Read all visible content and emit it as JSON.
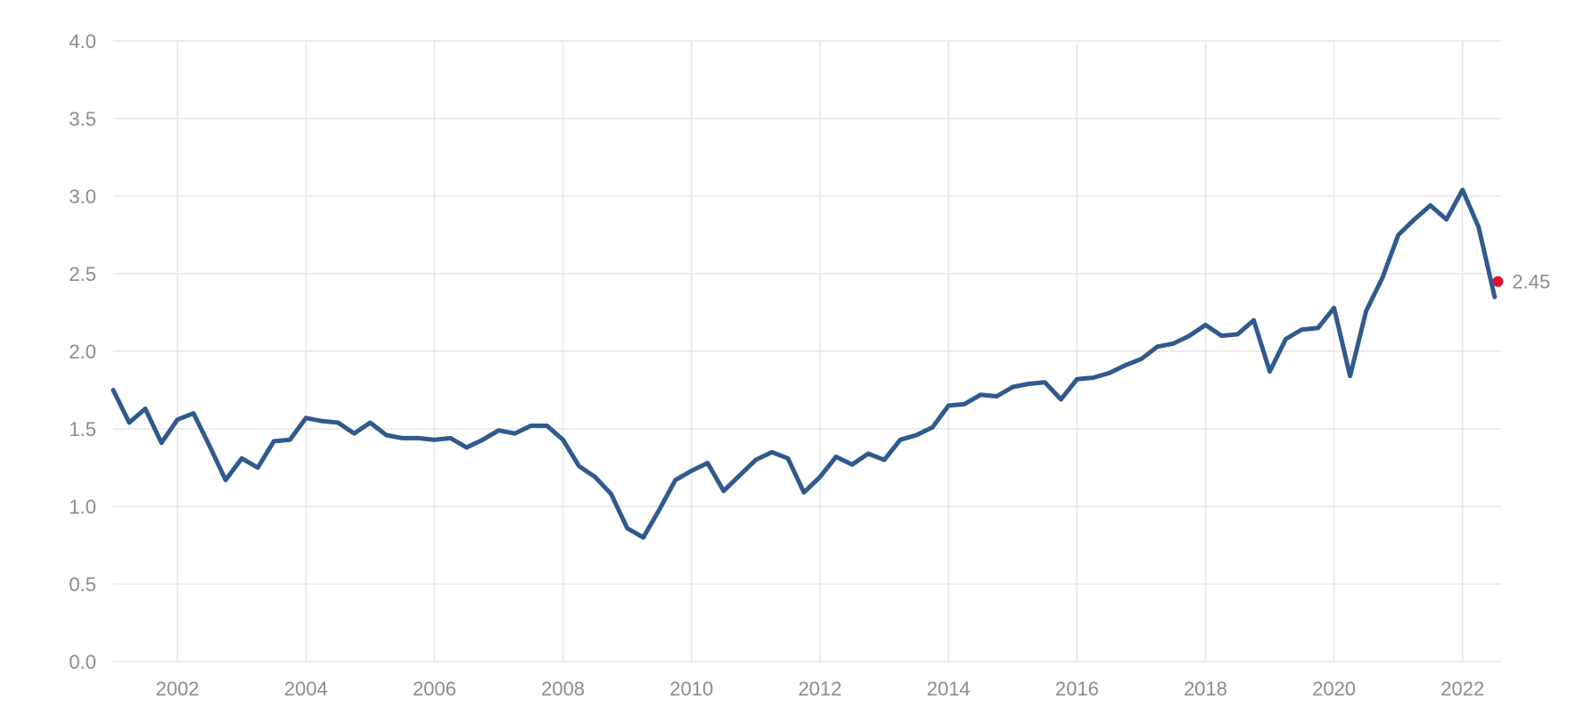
{
  "chart_data": {
    "type": "line",
    "title": "",
    "xlabel": "",
    "ylabel": "",
    "xlim": [
      2001.0,
      2022.6
    ],
    "ylim": [
      0,
      4
    ],
    "grid": true,
    "yticks": [
      "0.0",
      "0.5",
      "1.0",
      "1.5",
      "2.0",
      "2.5",
      "3.0",
      "3.5",
      "4.0"
    ],
    "xticks": [
      "2002",
      "2004",
      "2006",
      "2008",
      "2010",
      "2012",
      "2014",
      "2016",
      "2018",
      "2020",
      "2022"
    ],
    "colors": {
      "line": "#2f5a8e",
      "marker": "#e0102f"
    },
    "series": [
      {
        "x": [
          2001.0,
          2001.25,
          2001.5,
          2001.75,
          2002.0,
          2002.25,
          2002.5,
          2002.75,
          2003.0,
          2003.25,
          2003.5,
          2003.75,
          2004.0,
          2004.25,
          2004.5,
          2004.75,
          2005.0,
          2005.25,
          2005.5,
          2005.75,
          2006.0,
          2006.25,
          2006.5,
          2006.75,
          2007.0,
          2007.25,
          2007.5,
          2007.75,
          2008.0,
          2008.25,
          2008.5,
          2008.75,
          2009.0,
          2009.25,
          2009.5,
          2009.75,
          2010.0,
          2010.25,
          2010.5,
          2010.75,
          2011.0,
          2011.25,
          2011.5,
          2011.75,
          2012.0,
          2012.25,
          2012.5,
          2012.75,
          2013.0,
          2013.25,
          2013.5,
          2013.75,
          2014.0,
          2014.25,
          2014.5,
          2014.75,
          2015.0,
          2015.25,
          2015.5,
          2015.75,
          2016.0,
          2016.25,
          2016.5,
          2016.75,
          2017.0,
          2017.25,
          2017.5,
          2017.75,
          2018.0,
          2018.25,
          2018.5,
          2018.75,
          2019.0,
          2019.25,
          2019.5,
          2019.75,
          2020.0,
          2020.25,
          2020.5,
          2020.75,
          2021.0,
          2021.25,
          2021.5,
          2021.75,
          2022.0,
          2022.25,
          2022.5
        ],
        "values": [
          1.75,
          1.54,
          1.63,
          1.41,
          1.56,
          1.6,
          1.39,
          1.17,
          1.31,
          1.25,
          1.42,
          1.43,
          1.57,
          1.55,
          1.54,
          1.47,
          1.54,
          1.46,
          1.44,
          1.44,
          1.43,
          1.44,
          1.38,
          1.43,
          1.49,
          1.47,
          1.52,
          1.52,
          1.43,
          1.26,
          1.19,
          1.08,
          0.86,
          0.8,
          0.98,
          1.17,
          1.23,
          1.28,
          1.1,
          1.2,
          1.3,
          1.35,
          1.31,
          1.09,
          1.19,
          1.32,
          1.27,
          1.34,
          1.3,
          1.43,
          1.46,
          1.51,
          1.65,
          1.66,
          1.72,
          1.71,
          1.77,
          1.79,
          1.8,
          1.69,
          1.82,
          1.83,
          1.86,
          1.91,
          1.95,
          2.03,
          2.05,
          2.1,
          2.17,
          2.1,
          2.11,
          2.2,
          1.87,
          2.08,
          2.14,
          2.15,
          2.28,
          1.84,
          2.26,
          2.47,
          2.75,
          2.85,
          2.94,
          2.85,
          3.04,
          2.8,
          2.35
        ]
      }
    ],
    "last_point": {
      "x": 2022.55,
      "value": 2.45,
      "label": "2.45"
    }
  }
}
